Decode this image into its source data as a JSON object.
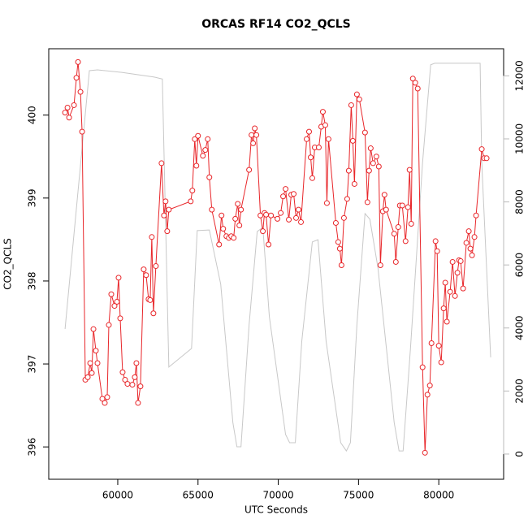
{
  "chart_data": {
    "type": "line",
    "title": "ORCAS RF14 CO2_QCLS",
    "xlabel": "UTC Seconds",
    "ylabel": "CO2_QCLS",
    "xlim": [
      55700,
      84040
    ],
    "xticks": [
      60000,
      65000,
      70000,
      75000,
      80000
    ],
    "ylim": [
      395.61,
      400.8
    ],
    "yticks": [
      396,
      397,
      398,
      399,
      400
    ],
    "y2lim": [
      -800,
      12860
    ],
    "y2ticks": [
      0,
      2000,
      4000,
      6000,
      8000,
      10000,
      12000
    ],
    "series": [
      {
        "color": "#e8262a",
        "markers": true,
        "x": [
          56717,
          56869,
          56970,
          57273,
          57424,
          57525,
          57677,
          57778,
          57980,
          58131,
          58283,
          58384,
          58485,
          58636,
          58737,
          59040,
          59192,
          59343,
          59444,
          59596,
          59798,
          59949,
          60051,
          60152,
          60303,
          60455,
          60606,
          60909,
          61061,
          61162,
          61263,
          61414,
          61616,
          61768,
          61919,
          62020,
          62121,
          62222,
          62374,
          62727,
          62879,
          62980,
          63081,
          63182,
          64545,
          64646,
          64798,
          64899,
          65000,
          65303,
          65455,
          65606,
          65707,
          65859,
          66313,
          66465,
          66566,
          66768,
          66919,
          67071,
          67222,
          67323,
          67475,
          67576,
          67677,
          68182,
          68333,
          68434,
          68535,
          68636,
          68889,
          69040,
          69141,
          69242,
          69394,
          69545,
          69949,
          70152,
          70303,
          70455,
          70657,
          70808,
          70960,
          71111,
          71263,
          71414,
          71768,
          71919,
          72020,
          72121,
          72273,
          72525,
          72677,
          72778,
          72929,
          73030,
          73131,
          73586,
          73737,
          73838,
          73939,
          74091,
          74293,
          74394,
          74545,
          74646,
          74747,
          74899,
          75051,
          75404,
          75556,
          75657,
          75758,
          75909,
          76111,
          76263,
          76364,
          76515,
          76616,
          76717,
          77222,
          77323,
          77475,
          77576,
          77727,
          77929,
          78081,
          78182,
          78283,
          78384,
          78535,
          78687,
          78990,
          79141,
          79293,
          79444,
          79545,
          79798,
          79899,
          80000,
          80152,
          80303,
          80404,
          80505,
          80707,
          80859,
          81010,
          81162,
          81263,
          81364,
          81515,
          81717,
          81869,
          81970,
          82071,
          82222,
          82323,
          82677,
          82828,
          82980
        ],
        "values": [
          400.03,
          400.09,
          399.97,
          400.12,
          400.45,
          400.64,
          400.28,
          399.8,
          396.81,
          396.84,
          397.01,
          396.89,
          397.42,
          397.16,
          397.01,
          396.58,
          396.53,
          396.6,
          397.47,
          397.84,
          397.7,
          397.75,
          398.04,
          397.55,
          396.9,
          396.81,
          396.76,
          396.75,
          396.84,
          397.01,
          396.53,
          396.73,
          398.14,
          398.07,
          397.78,
          397.77,
          398.53,
          397.61,
          398.18,
          399.42,
          398.79,
          398.96,
          398.6,
          398.86,
          398.96,
          399.09,
          399.71,
          399.39,
          399.75,
          399.51,
          399.58,
          399.71,
          399.25,
          398.86,
          398.44,
          398.79,
          398.63,
          398.54,
          398.52,
          398.54,
          398.52,
          398.75,
          398.93,
          398.67,
          398.86,
          399.34,
          399.76,
          399.66,
          399.84,
          399.76,
          398.79,
          398.6,
          398.82,
          398.8,
          398.44,
          398.79,
          398.75,
          398.82,
          399.02,
          399.11,
          398.74,
          399.04,
          399.05,
          398.76,
          398.86,
          398.71,
          399.71,
          399.8,
          399.49,
          399.24,
          399.61,
          399.61,
          399.86,
          400.04,
          399.88,
          398.94,
          399.71,
          398.7,
          398.47,
          398.39,
          398.19,
          398.76,
          398.99,
          399.33,
          400.12,
          399.69,
          399.17,
          400.25,
          400.19,
          399.79,
          398.95,
          399.33,
          399.6,
          399.42,
          399.5,
          399.38,
          398.19,
          398.84,
          399.04,
          398.86,
          398.57,
          398.23,
          398.65,
          398.91,
          398.91,
          398.48,
          398.89,
          399.34,
          398.69,
          400.44,
          400.39,
          400.32,
          396.96,
          395.93,
          396.63,
          396.74,
          397.25,
          398.48,
          398.36,
          397.22,
          397.02,
          397.67,
          397.98,
          397.51,
          397.87,
          398.23,
          397.82,
          398.1,
          398.25,
          398.24,
          397.91,
          398.46,
          398.6,
          398.39,
          398.31,
          398.53,
          398.79,
          399.59,
          399.48,
          399.48
        ]
      },
      {
        "color": "#c8c8c8",
        "markers": false,
        "axis": "y2",
        "x": [
          56717,
          58232,
          58737,
          60253,
          62273,
          62778,
          63182,
          64596,
          64949,
          65707,
          66414,
          67172,
          67424,
          67677,
          68182,
          68687,
          69040,
          69444,
          70455,
          70707,
          71061,
          71465,
          72121,
          72475,
          72980,
          73889,
          74242,
          74495,
          74899,
          75404,
          75707,
          76212,
          77222,
          77525,
          77778,
          78232,
          78990,
          79495,
          79747,
          82576,
          82677,
          83232
        ],
        "values": [
          3970,
          12165,
          12190,
          12110,
          11960,
          11900,
          2760,
          3350,
          7090,
          7110,
          5390,
          1000,
          230,
          230,
          4100,
          7060,
          7190,
          4360,
          620,
          360,
          360,
          3580,
          6730,
          6800,
          3580,
          360,
          100,
          360,
          4100,
          7630,
          7450,
          5900,
          1000,
          100,
          100,
          3320,
          9250,
          12350,
          12400,
          12400,
          9250,
          3070
        ]
      }
    ]
  }
}
